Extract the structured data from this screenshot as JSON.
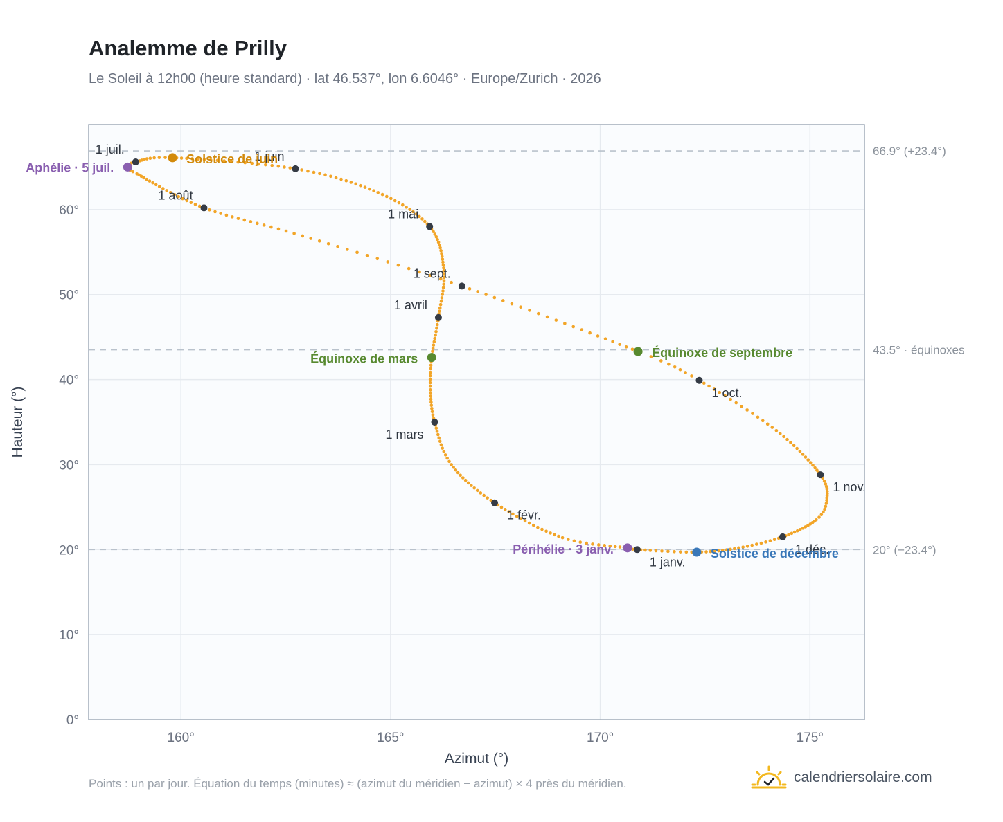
{
  "header": {
    "title": "Analemme de Prilly",
    "subtitle": "Le Soleil à 12h00 (heure standard) · lat 46.537°, lon 6.6046° · Europe/Zurich · 2026"
  },
  "footer": {
    "note": "Points : un par jour. Équation du temps (minutes) ≈ (azimut du méridien − azimut) × 4 près du méridien.",
    "brand": "calendriersolaire.com"
  },
  "colors": {
    "curve": "#f2a528",
    "month": "#353b45",
    "solstice_june": "#d28a0c",
    "solstice_dec": "#3a78b9",
    "equinox": "#57892f",
    "apsis": "#8a5fb0",
    "grid": "#e6eaef",
    "plot_bg": "#fafcfe",
    "frame": "#a1acb9",
    "ref_line": "#b9c2cc"
  },
  "chart_data": {
    "type": "scatter",
    "xlabel": "Azimut (°)",
    "ylabel": "Hauteur (°)",
    "xlim": [
      157.8,
      176.3
    ],
    "ylim": [
      0,
      70
    ],
    "x_ticks": [
      {
        "value": 160,
        "label": "160°"
      },
      {
        "value": 165,
        "label": "165°"
      },
      {
        "value": 170,
        "label": "170°"
      },
      {
        "value": 175,
        "label": "175°"
      }
    ],
    "y_ticks": [
      {
        "value": 0,
        "label": "0°"
      },
      {
        "value": 10,
        "label": "10°"
      },
      {
        "value": 20,
        "label": "20°"
      },
      {
        "value": 30,
        "label": "30°"
      },
      {
        "value": 40,
        "label": "40°"
      },
      {
        "value": 50,
        "label": "50°"
      },
      {
        "value": 60,
        "label": "60°"
      }
    ],
    "grid": true,
    "series": [
      {
        "points_per_day": true,
        "anchors": [
          {
            "day": 1,
            "az": 170.88,
            "alt": 20.0
          },
          {
            "day": 3,
            "az": 170.65,
            "alt": 20.2
          },
          {
            "day": 15,
            "az": 169.1,
            "alt": 21.4
          },
          {
            "day": 32,
            "az": 167.48,
            "alt": 25.5
          },
          {
            "day": 47,
            "az": 166.45,
            "alt": 30.0
          },
          {
            "day": 60,
            "az": 166.05,
            "alt": 35.0
          },
          {
            "day": 70,
            "az": 165.95,
            "alt": 38.8
          },
          {
            "day": 79,
            "az": 165.98,
            "alt": 42.6
          },
          {
            "day": 91,
            "az": 166.14,
            "alt": 47.3
          },
          {
            "day": 105,
            "az": 166.27,
            "alt": 52.8
          },
          {
            "day": 121,
            "az": 165.93,
            "alt": 58.0
          },
          {
            "day": 136,
            "az": 164.7,
            "alt": 62.0
          },
          {
            "day": 152,
            "az": 162.73,
            "alt": 64.8
          },
          {
            "day": 172,
            "az": 159.8,
            "alt": 66.1
          },
          {
            "day": 182,
            "az": 158.92,
            "alt": 65.6
          },
          {
            "day": 186,
            "az": 158.73,
            "alt": 65.0
          },
          {
            "day": 194,
            "az": 158.95,
            "alt": 64.2
          },
          {
            "day": 213,
            "az": 160.55,
            "alt": 60.2
          },
          {
            "day": 228,
            "az": 162.9,
            "alt": 56.9
          },
          {
            "day": 244,
            "az": 166.7,
            "alt": 51.0
          },
          {
            "day": 266,
            "az": 170.9,
            "alt": 43.3
          },
          {
            "day": 274,
            "az": 172.36,
            "alt": 39.9
          },
          {
            "day": 289,
            "az": 174.2,
            "alt": 34.0
          },
          {
            "day": 305,
            "az": 175.25,
            "alt": 28.8
          },
          {
            "day": 315,
            "az": 175.4,
            "alt": 25.8
          },
          {
            "day": 322,
            "az": 175.15,
            "alt": 23.5
          },
          {
            "day": 335,
            "az": 174.35,
            "alt": 21.5
          },
          {
            "day": 345,
            "az": 173.3,
            "alt": 20.2
          },
          {
            "day": 355,
            "az": 172.3,
            "alt": 19.7
          },
          {
            "day": 366,
            "az": 170.88,
            "alt": 20.0
          }
        ]
      }
    ],
    "reference_lines": [
      {
        "y": 66.9,
        "label": "66.9° (+23.4°)"
      },
      {
        "y": 43.5,
        "label": "43.5° · équinoxes"
      },
      {
        "y": 20.0,
        "label": "20° (−23.4°)"
      }
    ],
    "month_markers": [
      {
        "label": "1 janv.",
        "az": 170.88,
        "alt": 20.0,
        "anchor": "start",
        "dx": 18,
        "dy": 24
      },
      {
        "label": "1 févr.",
        "az": 167.48,
        "alt": 25.5,
        "anchor": "start",
        "dx": 18,
        "dy": 24
      },
      {
        "label": "1 mars",
        "az": 166.05,
        "alt": 35.0,
        "anchor": "end",
        "dx": -16,
        "dy": 24
      },
      {
        "label": "1 avril",
        "az": 166.14,
        "alt": 47.3,
        "anchor": "end",
        "dx": -16,
        "dy": -12
      },
      {
        "label": "1 mai",
        "az": 165.93,
        "alt": 58.0,
        "anchor": "end",
        "dx": -16,
        "dy": -12
      },
      {
        "label": "1 juin",
        "az": 162.73,
        "alt": 64.8,
        "anchor": "end",
        "dx": -16,
        "dy": -12
      },
      {
        "label": "1 juil.",
        "az": 158.92,
        "alt": 65.6,
        "anchor": "end",
        "dx": -16,
        "dy": -12
      },
      {
        "label": "1 août",
        "az": 160.55,
        "alt": 60.2,
        "anchor": "end",
        "dx": -16,
        "dy": -12
      },
      {
        "label": "1 sept.",
        "az": 166.7,
        "alt": 51.0,
        "anchor": "end",
        "dx": -16,
        "dy": -12
      },
      {
        "label": "1 oct.",
        "az": 172.36,
        "alt": 39.9,
        "anchor": "start",
        "dx": 18,
        "dy": 24
      },
      {
        "label": "1 nov.",
        "az": 175.25,
        "alt": 28.8,
        "anchor": "start",
        "dx": 18,
        "dy": 24
      },
      {
        "label": "1 déc.",
        "az": 174.35,
        "alt": 21.5,
        "anchor": "start",
        "dx": 18,
        "dy": 24
      }
    ],
    "events": [
      {
        "label": "Solstice de juin",
        "az": 159.8,
        "alt": 66.1,
        "color": "#d28a0c",
        "anchor": "start",
        "dx": 20,
        "dy": 8
      },
      {
        "label": "Aphélie · 5 juil.",
        "az": 158.73,
        "alt": 65.0,
        "color": "#8a5fb0",
        "anchor": "end",
        "dx": -20,
        "dy": 7
      },
      {
        "label": "Équinoxe de mars",
        "az": 165.98,
        "alt": 42.6,
        "color": "#57892f",
        "anchor": "end",
        "dx": -20,
        "dy": 8
      },
      {
        "label": "Équinoxe de septembre",
        "az": 170.9,
        "alt": 43.3,
        "color": "#57892f",
        "anchor": "start",
        "dx": 20,
        "dy": 8
      },
      {
        "label": "Périhélie · 3 janv.",
        "az": 170.65,
        "alt": 20.2,
        "color": "#8a5fb0",
        "anchor": "end",
        "dx": -20,
        "dy": 8
      },
      {
        "label": "Solstice de décembre",
        "az": 172.3,
        "alt": 19.7,
        "color": "#3a78b9",
        "anchor": "start",
        "dx": 20,
        "dy": 8
      }
    ]
  }
}
